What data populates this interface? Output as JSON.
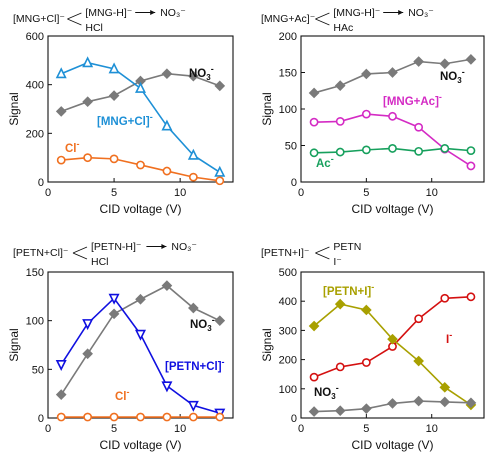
{
  "chart_data": [
    {
      "type": "line",
      "scheme": {
        "reactant": "[MNG+Cl]⁻",
        "product_top": "[MNG-H]⁻",
        "final": "NO₃⁻",
        "product_bottom": "HCl"
      },
      "xlabel": "CID voltage (V)",
      "ylabel": "Signal",
      "xlim": [
        0,
        14
      ],
      "ylim": [
        0,
        600
      ],
      "xticks": [
        0,
        5,
        10
      ],
      "yticks": [
        0,
        200,
        400,
        600
      ],
      "series": [
        {
          "name": "NO₃⁻",
          "color": "#7a7a7a",
          "marker": "diamond",
          "x": [
            1,
            3,
            5,
            7,
            9,
            11,
            13
          ],
          "y": [
            290,
            330,
            355,
            415,
            445,
            435,
            395
          ]
        },
        {
          "name": "[MNG+Cl]⁻",
          "color": "#1e90d6",
          "marker": "triangle-up",
          "x": [
            1,
            3,
            5,
            7,
            9,
            11,
            13
          ],
          "y": [
            445,
            490,
            465,
            385,
            230,
            110,
            40
          ]
        },
        {
          "name": "Cl⁻",
          "color": "#f07020",
          "marker": "circle",
          "x": [
            1,
            3,
            5,
            7,
            9,
            11,
            13
          ],
          "y": [
            90,
            100,
            95,
            70,
            45,
            20,
            5
          ]
        }
      ]
    },
    {
      "type": "line",
      "scheme": {
        "reactant": "[MNG+Ac]⁻",
        "product_top": "[MNG-H]⁻",
        "final": "NO₃⁻",
        "product_bottom": "HAc"
      },
      "xlabel": "CID voltage (V)",
      "ylabel": "Signal",
      "xlim": [
        0,
        14
      ],
      "ylim": [
        0,
        200
      ],
      "xticks": [
        0,
        5,
        10
      ],
      "yticks": [
        0,
        50,
        100,
        150,
        200
      ],
      "series": [
        {
          "name": "NO₃⁻",
          "color": "#7a7a7a",
          "marker": "diamond",
          "x": [
            1,
            3,
            5,
            7,
            9,
            11,
            13
          ],
          "y": [
            122,
            132,
            148,
            150,
            165,
            162,
            168
          ]
        },
        {
          "name": "[MNG+Ac]⁻",
          "color": "#d42bc4",
          "marker": "circle",
          "x": [
            1,
            3,
            5,
            7,
            9,
            11,
            13
          ],
          "y": [
            82,
            83,
            93,
            90,
            75,
            45,
            22
          ]
        },
        {
          "name": "Ac⁻",
          "color": "#17a05d",
          "marker": "circle",
          "x": [
            1,
            3,
            5,
            7,
            9,
            11,
            13
          ],
          "y": [
            40,
            41,
            44,
            46,
            42,
            46,
            43
          ]
        }
      ]
    },
    {
      "type": "line",
      "scheme": {
        "reactant": "[PETN+Cl]⁻",
        "product_top": "[PETN-H]⁻",
        "final": "NO₃⁻",
        "product_bottom": "HCl"
      },
      "xlabel": "CID voltage (V)",
      "ylabel": "Signal",
      "xlim": [
        0,
        14
      ],
      "ylim": [
        0,
        150
      ],
      "xticks": [
        0,
        5,
        10
      ],
      "yticks": [
        0,
        50,
        100,
        150
      ],
      "series": [
        {
          "name": "NO₃⁻",
          "color": "#7a7a7a",
          "marker": "diamond",
          "x": [
            1,
            3,
            5,
            7,
            9,
            11,
            13
          ],
          "y": [
            24,
            66,
            107,
            122,
            136,
            113,
            100
          ]
        },
        {
          "name": "[PETN+Cl]⁻",
          "color": "#1010e0",
          "marker": "triangle-down",
          "x": [
            1,
            3,
            5,
            7,
            9,
            11,
            13
          ],
          "y": [
            55,
            97,
            123,
            86,
            33,
            13,
            5
          ]
        },
        {
          "name": "Cl⁻",
          "color": "#f07020",
          "marker": "circle",
          "x": [
            1,
            3,
            5,
            7,
            9,
            11,
            13
          ],
          "y": [
            1,
            1,
            1,
            1,
            1,
            1,
            1
          ]
        }
      ]
    },
    {
      "type": "line",
      "scheme": {
        "reactant": "[PETN+I]⁻",
        "product_top": "PETN",
        "final": "",
        "product_bottom": "I⁻"
      },
      "xlabel": "CID voltage (V)",
      "ylabel": "Signal",
      "xlim": [
        0,
        14
      ],
      "ylim": [
        0,
        500
      ],
      "xticks": [
        0,
        5,
        10
      ],
      "yticks": [
        0,
        100,
        200,
        300,
        400,
        500
      ],
      "series": [
        {
          "name": "I⁻",
          "color": "#d41010",
          "marker": "circle",
          "x": [
            1,
            3,
            5,
            7,
            9,
            11,
            13
          ],
          "y": [
            140,
            175,
            190,
            245,
            340,
            410,
            415
          ]
        },
        {
          "name": "[PETN+I]⁻",
          "color": "#a8a000",
          "marker": "diamond",
          "x": [
            1,
            3,
            5,
            7,
            9,
            11,
            13
          ],
          "y": [
            315,
            390,
            370,
            270,
            195,
            105,
            45
          ]
        },
        {
          "name": "NO₃⁻",
          "color": "#7a7a7a",
          "marker": "diamond",
          "x": [
            1,
            3,
            5,
            7,
            9,
            11,
            13
          ],
          "y": [
            22,
            25,
            32,
            50,
            58,
            55,
            52
          ]
        }
      ]
    }
  ]
}
